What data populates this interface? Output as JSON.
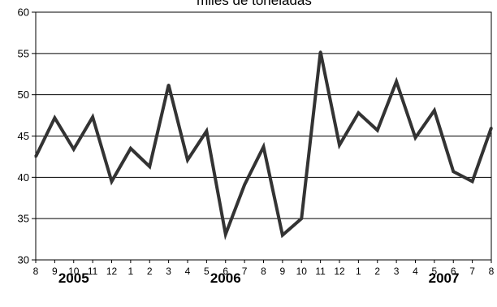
{
  "chart_data": {
    "type": "line",
    "title": "miles de toneladas",
    "xlabel": "",
    "ylabel": "",
    "ylim": [
      30,
      60
    ],
    "yticks": [
      30,
      35,
      40,
      45,
      50,
      55,
      60
    ],
    "grid": true,
    "categories": [
      "8",
      "9",
      "10",
      "11",
      "12",
      "1",
      "2",
      "3",
      "4",
      "5",
      "6",
      "7",
      "8",
      "9",
      "10",
      "11",
      "12",
      "1",
      "2",
      "3",
      "4",
      "5",
      "6",
      "7",
      "8"
    ],
    "year_labels": [
      {
        "label": "2005",
        "category_index": 2
      },
      {
        "label": "2006",
        "category_index": 10
      },
      {
        "label": "2007",
        "category_index": 21.5
      }
    ],
    "series": [
      {
        "color": "#333333",
        "values": [
          42.5,
          47.2,
          43.4,
          47.3,
          39.5,
          43.5,
          41.3,
          51.2,
          42.1,
          45.6,
          33.1,
          39.1,
          43.7,
          33.0,
          35.0,
          55.2,
          43.9,
          47.8,
          45.7,
          51.6,
          44.8,
          48.1,
          40.7,
          39.5,
          46.0
        ]
      }
    ]
  }
}
